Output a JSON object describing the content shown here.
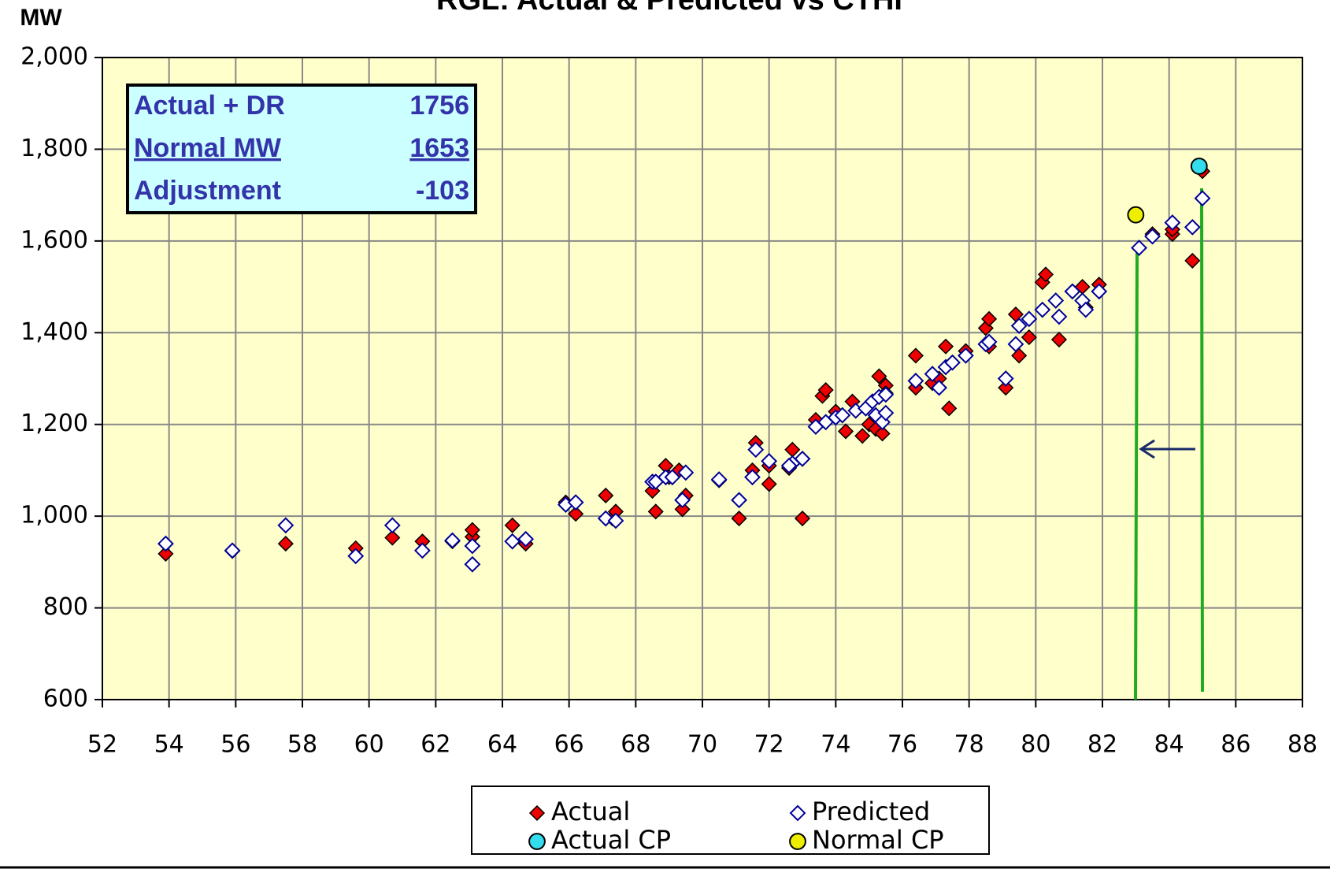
{
  "chart_data": {
    "type": "scatter",
    "title": "RGL: Actual & Predicted vs CTHI",
    "y_label": "MW",
    "xlim": [
      52,
      88
    ],
    "xticks": [
      52,
      54,
      56,
      58,
      60,
      62,
      64,
      66,
      68,
      70,
      72,
      74,
      76,
      78,
      80,
      82,
      84,
      86,
      88
    ],
    "ylim": [
      600,
      2000
    ],
    "yticks": [
      {
        "value": 600,
        "label": "600"
      },
      {
        "value": 800,
        "label": "800"
      },
      {
        "value": 1000,
        "label": "1,000"
      },
      {
        "value": 1200,
        "label": "1,200"
      },
      {
        "value": 1400,
        "label": "1,400"
      },
      {
        "value": 1600,
        "label": "1,600"
      },
      {
        "value": 1800,
        "label": "1,800"
      },
      {
        "value": 2000,
        "label": "2,000"
      }
    ],
    "grid": true,
    "info_box": {
      "rows": [
        {
          "label": "Actual + DR",
          "value": 1756
        },
        {
          "label": "Normal MW",
          "value": 1653
        },
        {
          "label": "Adjustment",
          "value": -103
        }
      ]
    },
    "series": [
      {
        "name": "Actual",
        "color": "#ee0000",
        "marker": "diamond-filled",
        "x": [
          53.9,
          55.9,
          57.5,
          59.6,
          60.7,
          61.6,
          62.5,
          63.1,
          63.1,
          64.3,
          64.7,
          65.9,
          66.2,
          67.1,
          67.3,
          67.4,
          68.5,
          68.6,
          68.9,
          69.0,
          69.3,
          69.5,
          69.4,
          70.5,
          71.1,
          71.5,
          71.6,
          72.0,
          72.0,
          72.7,
          72.6,
          73.0,
          73.4,
          73.6,
          73.7,
          74.0,
          74.3,
          74.5,
          74.8,
          75.0,
          75.2,
          75.3,
          75.4,
          75.5,
          75.5,
          76.4,
          76.4,
          76.9,
          77.1,
          77.3,
          77.4,
          77.9,
          78.5,
          78.6,
          78.6,
          79.1,
          79.4,
          79.5,
          79.8,
          80.2,
          80.3,
          80.7,
          81.1,
          81.4,
          81.5,
          81.9,
          83.5,
          84.1,
          84.1,
          84.7,
          85.0
        ],
        "values": [
          918,
          924,
          940,
          930,
          953,
          945,
          945,
          955,
          970,
          980,
          940,
          1030,
          1005,
          1045,
          995,
          1010,
          1055,
          1010,
          1110,
          1085,
          1100,
          1045,
          1015,
          1078,
          995,
          1100,
          1160,
          1110,
          1070,
          1145,
          1105,
          995,
          1210,
          1262,
          1275,
          1228,
          1185,
          1250,
          1175,
          1200,
          1190,
          1305,
          1180,
          1285,
          1268,
          1350,
          1280,
          1290,
          1300,
          1370,
          1235,
          1360,
          1410,
          1430,
          1370,
          1280,
          1440,
          1350,
          1390,
          1510,
          1527,
          1385,
          1490,
          1500,
          1455,
          1505,
          1615,
          1615,
          1625,
          1557,
          1752
        ]
      },
      {
        "name": "Predicted",
        "color": "#000099",
        "marker": "diamond-open",
        "x": [
          53.9,
          55.9,
          57.5,
          59.6,
          60.7,
          61.6,
          62.5,
          63.1,
          63.1,
          64.3,
          64.7,
          65.9,
          66.2,
          67.1,
          67.4,
          68.5,
          68.6,
          68.9,
          69.1,
          69.5,
          69.4,
          70.5,
          71.1,
          71.5,
          71.6,
          72.0,
          72.7,
          72.6,
          73.0,
          73.4,
          73.7,
          74.0,
          74.2,
          74.6,
          74.9,
          75.1,
          75.2,
          75.3,
          75.4,
          75.5,
          75.5,
          76.4,
          76.9,
          77.1,
          77.3,
          77.5,
          77.9,
          78.5,
          78.6,
          79.1,
          79.4,
          79.5,
          79.8,
          80.2,
          80.6,
          80.7,
          81.1,
          81.4,
          81.5,
          81.9,
          83.1,
          83.5,
          84.1,
          84.7,
          85.0
        ],
        "values": [
          940,
          925,
          980,
          913,
          980,
          925,
          947,
          895,
          935,
          945,
          950,
          1025,
          1030,
          995,
          990,
          1075,
          1075,
          1085,
          1085,
          1095,
          1035,
          1080,
          1035,
          1085,
          1145,
          1120,
          1115,
          1110,
          1125,
          1195,
          1205,
          1215,
          1220,
          1230,
          1235,
          1250,
          1220,
          1260,
          1205,
          1225,
          1265,
          1295,
          1310,
          1280,
          1325,
          1335,
          1350,
          1375,
          1380,
          1300,
          1375,
          1415,
          1430,
          1450,
          1470,
          1435,
          1490,
          1470,
          1450,
          1490,
          1585,
          1610,
          1640,
          1630,
          1693
        ]
      },
      {
        "name": "Actual CP",
        "color": "#33ddee",
        "marker": "circle",
        "x": [
          84.9
        ],
        "values": [
          1763
        ]
      },
      {
        "name": "Normal CP",
        "color": "#eeee00",
        "marker": "circle",
        "x": [
          83.0
        ],
        "values": [
          1657
        ]
      }
    ]
  }
}
